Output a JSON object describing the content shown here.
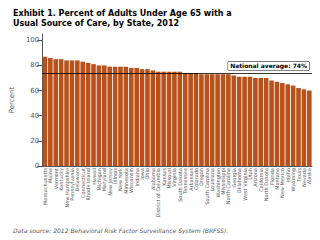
{
  "chart_data": {
    "type": "bar",
    "title": "Exhibit 1. Percent of Adults Under Age 65 with a\nUsual Source of Care, by State, 2012",
    "ylabel": "Percent",
    "source": "Data source: 2012 Behavioral Risk Factor Surveillance System (BRFSS).",
    "categories": [
      "Massachusetts",
      "Maine",
      "Vermont",
      "Kentucky",
      "New Hampshire",
      "Pennsylvania",
      "Delaware",
      "Connecticut",
      "Rhode Island",
      "Hawaii",
      "Michigan",
      "Maryland",
      "New Jersey",
      "Illinois",
      "New York",
      "Minnesota",
      "Wisconsin",
      "Indiana",
      "Iowa",
      "Ohio",
      "Alabama",
      "District of Columbia",
      "Kansas",
      "Missouri",
      "Virginia",
      "South Dakota",
      "Tennessee",
      "Arkansas",
      "Colorado",
      "Oregon",
      "South Carolina",
      "Louisiana",
      "Washington",
      "Mississippi",
      "North Carolina",
      "Georgia",
      "Oklahoma",
      "West Virginia",
      "Utah",
      "Arizona",
      "California",
      "North Dakota",
      "Florida",
      "Montana",
      "New Mexico",
      "Idaho",
      "Wyoming",
      "Texas",
      "Nevada",
      "Alaska"
    ],
    "values": [
      87,
      86,
      85,
      85,
      84,
      84,
      84,
      83,
      82,
      81,
      80,
      80,
      79,
      79,
      79,
      79,
      78,
      78,
      77,
      77,
      76,
      75,
      75,
      75,
      75,
      75,
      74,
      74,
      74,
      73,
      73,
      73,
      73,
      73,
      73,
      72,
      71,
      71,
      71,
      70,
      70,
      70,
      68,
      67,
      66,
      65,
      64,
      62,
      61,
      60
    ],
    "color": "#B8511A",
    "annotations": [
      {
        "text": "National average: 74%",
        "y": 74,
        "color": "#000000"
      }
    ],
    "ylim": [
      0,
      105
    ],
    "yticks": [
      0,
      20,
      40,
      60,
      80,
      100
    ],
    "grid": false
  }
}
